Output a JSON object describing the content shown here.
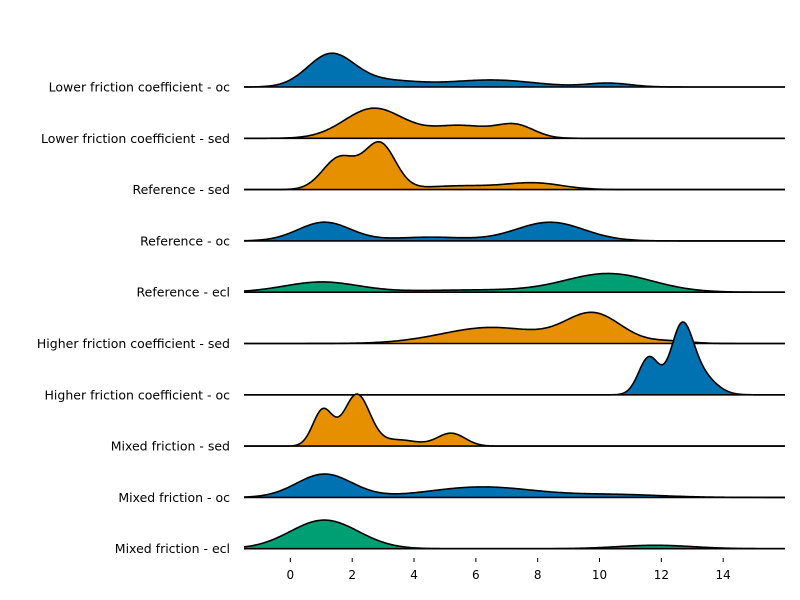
{
  "chart_data": {
    "type": "ridgeline",
    "title": "",
    "xlabel": "",
    "ylabel": "",
    "xlim": [
      -1.5,
      16
    ],
    "x_ticks": [
      0,
      2,
      4,
      6,
      8,
      10,
      12,
      14
    ],
    "grid": false,
    "legend": "none",
    "colors": {
      "blue": "#0072B2",
      "orange": "#E69000",
      "green": "#009E73",
      "outline": "#000000"
    },
    "series": [
      {
        "name": "Lower friction coefficient - oc",
        "color": "#0072B2",
        "peak_height": 0.65,
        "components": [
          {
            "mean": 1.3,
            "sd": 0.75,
            "weight": 1.0
          },
          {
            "mean": 3.0,
            "sd": 1.1,
            "weight": 0.2
          },
          {
            "mean": 6.5,
            "sd": 1.4,
            "weight": 0.22
          },
          {
            "mean": 10.3,
            "sd": 0.7,
            "weight": 0.12
          }
        ]
      },
      {
        "name": "Lower friction coefficient - sed",
        "color": "#E69000",
        "peak_height": 0.58,
        "components": [
          {
            "mean": 2.7,
            "sd": 0.95,
            "weight": 1.0
          },
          {
            "mean": 5.5,
            "sd": 1.0,
            "weight": 0.42
          },
          {
            "mean": 7.3,
            "sd": 0.6,
            "weight": 0.4
          }
        ]
      },
      {
        "name": "Reference - sed",
        "color": "#E69000",
        "peak_height": 0.92,
        "components": [
          {
            "mean": 1.6,
            "sd": 0.55,
            "weight": 0.6
          },
          {
            "mean": 2.9,
            "sd": 0.5,
            "weight": 0.85
          },
          {
            "mean": 5.5,
            "sd": 1.2,
            "weight": 0.07
          },
          {
            "mean": 7.9,
            "sd": 0.9,
            "weight": 0.12
          }
        ]
      },
      {
        "name": "Reference - oc",
        "color": "#0072B2",
        "peak_height": 0.36,
        "components": [
          {
            "mean": 1.1,
            "sd": 0.85,
            "weight": 1.0
          },
          {
            "mean": 4.5,
            "sd": 1.2,
            "weight": 0.2
          },
          {
            "mean": 8.4,
            "sd": 1.1,
            "weight": 1.0
          }
        ]
      },
      {
        "name": "Reference - ecl",
        "color": "#009E73",
        "peak_height": 0.36,
        "components": [
          {
            "mean": 1.0,
            "sd": 1.2,
            "weight": 0.55
          },
          {
            "mean": 6.0,
            "sd": 2.0,
            "weight": 0.12
          },
          {
            "mean": 10.3,
            "sd": 1.4,
            "weight": 1.0
          }
        ]
      },
      {
        "name": "Higher friction coefficient - sed",
        "color": "#E69000",
        "peak_height": 0.6,
        "components": [
          {
            "mean": 6.5,
            "sd": 1.6,
            "weight": 0.55
          },
          {
            "mean": 9.8,
            "sd": 0.9,
            "weight": 1.0
          },
          {
            "mean": 12.3,
            "sd": 0.65,
            "weight": 0.08
          }
        ]
      },
      {
        "name": "Higher friction coefficient - oc",
        "color": "#0072B2",
        "peak_height": 1.4,
        "components": [
          {
            "mean": 11.6,
            "sd": 0.33,
            "weight": 0.62
          },
          {
            "mean": 12.65,
            "sd": 0.35,
            "weight": 1.0
          },
          {
            "mean": 13.2,
            "sd": 0.5,
            "weight": 0.35
          }
        ]
      },
      {
        "name": "Mixed friction - sed",
        "color": "#E69000",
        "peak_height": 1.0,
        "components": [
          {
            "mean": 1.05,
            "sd": 0.32,
            "weight": 0.7
          },
          {
            "mean": 2.15,
            "sd": 0.42,
            "weight": 1.0
          },
          {
            "mean": 3.5,
            "sd": 0.6,
            "weight": 0.12
          },
          {
            "mean": 5.2,
            "sd": 0.45,
            "weight": 0.25
          }
        ]
      },
      {
        "name": "Mixed friction - oc",
        "color": "#0072B2",
        "peak_height": 0.45,
        "components": [
          {
            "mean": 1.1,
            "sd": 0.9,
            "weight": 1.0
          },
          {
            "mean": 6.2,
            "sd": 1.7,
            "weight": 0.45
          },
          {
            "mean": 10.5,
            "sd": 1.5,
            "weight": 0.12
          }
        ]
      },
      {
        "name": "Mixed friction - ecl",
        "color": "#009E73",
        "peak_height": 0.55,
        "components": [
          {
            "mean": 1.1,
            "sd": 1.1,
            "weight": 1.0
          },
          {
            "mean": 11.8,
            "sd": 1.2,
            "weight": 0.12
          }
        ]
      }
    ]
  }
}
